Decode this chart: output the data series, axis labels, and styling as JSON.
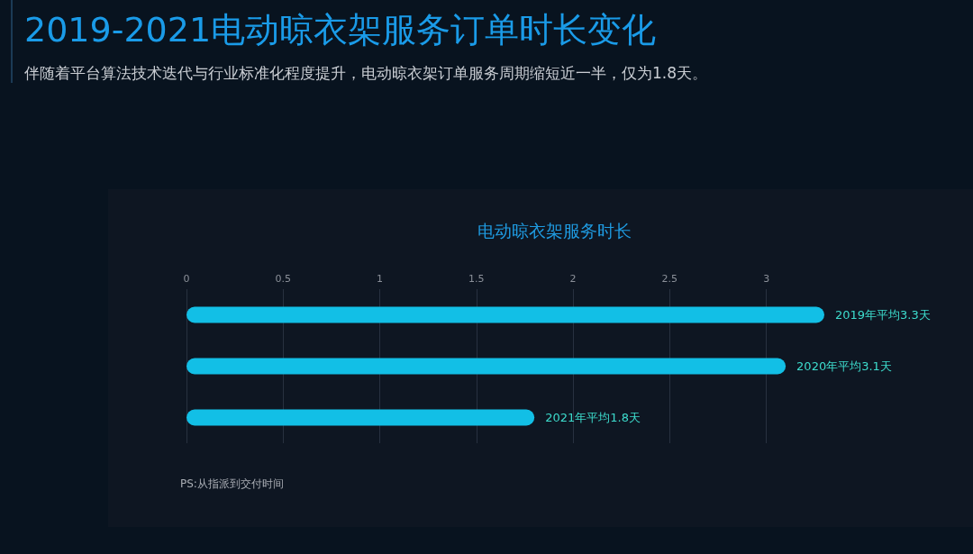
{
  "chart_data": {
    "type": "bar",
    "orientation": "horizontal",
    "title": "2019-2021电动晾衣架服务订单时长变化",
    "subtitle": "伴随着平台算法技术迭代与行业标准化程度提升，电动晾衣架订单服务周期缩短近一半，仅为1.8天。",
    "annotations": [
      "电动晾衣架服务时长",
      "PS:从指派到交付时间"
    ],
    "categories": [
      null,
      null,
      null
    ],
    "values": [
      3.3,
      3.1,
      1.8
    ],
    "color": "#12bfe6",
    "value_labels": [
      "2019年平均3.3天",
      "2020年平均3.1天",
      "2021年平均1.8天"
    ],
    "xlim": [
      0,
      3.3
    ],
    "xticks": [
      0,
      0.5,
      1,
      1.5,
      2,
      2.5,
      3
    ],
    "grid": "x",
    "tick_labels": "x"
  }
}
